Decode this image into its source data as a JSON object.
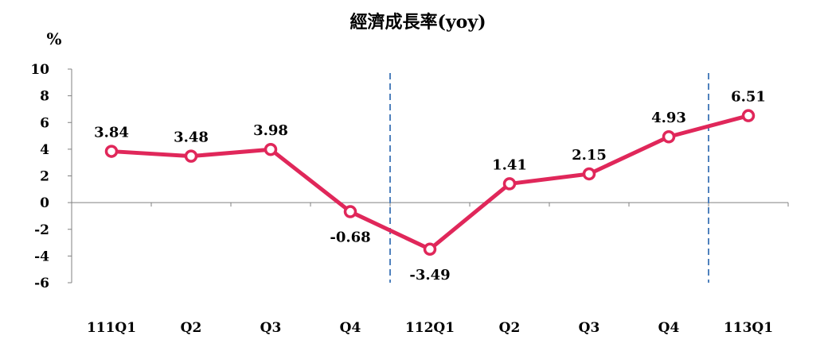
{
  "chart_data": {
    "type": "line",
    "title": "經濟成長率(yoy)",
    "ylabel": "%",
    "xlabel": "",
    "categories": [
      "111Q1",
      "Q2",
      "Q3",
      "Q4",
      "112Q1",
      "Q2",
      "Q3",
      "Q4",
      "113Q1"
    ],
    "series": [
      {
        "values": [
          3.84,
          3.48,
          3.98,
          -0.68,
          -3.49,
          1.41,
          2.15,
          4.93,
          6.51
        ],
        "labels": [
          "3.84",
          "3.48",
          "3.98",
          "-0.68",
          "-3.49",
          "1.41",
          "2.15",
          "4.93",
          "6.51"
        ],
        "color": "#e0275a"
      }
    ],
    "yticks": [
      "10",
      "8",
      "6",
      "4",
      "2",
      "0",
      "-2",
      "-4",
      "-6"
    ],
    "ylim": [
      -6,
      10
    ],
    "year_dividers": [
      "between Q4 and 112Q1",
      "between Q4 and 113Q1"
    ],
    "divider_color": "#4f81bd",
    "grid": false,
    "legend": "none"
  }
}
